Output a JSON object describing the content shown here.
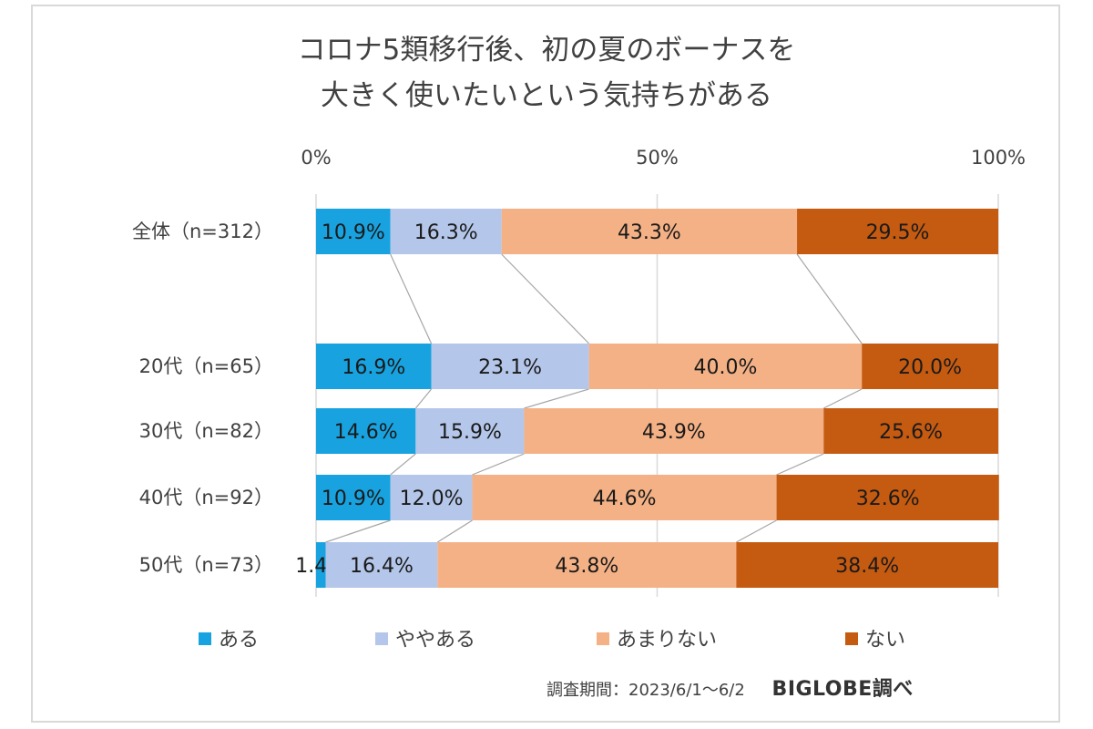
{
  "chart_data": {
    "type": "bar",
    "stacked": true,
    "orientation": "horizontal",
    "title_lines": [
      "コロナ5類移行後、初の夏のボーナスを",
      "大きく使いたいという気持ちがある"
    ],
    "x_ticks": [
      "0%",
      "50%",
      "100%"
    ],
    "xlim": [
      0,
      100
    ],
    "categories": [
      "全体（n=312）",
      "20代（n=65）",
      "30代（n=82）",
      "40代（n=92）",
      "50代（n=73）"
    ],
    "series": [
      {
        "name": "ある",
        "color": "#18a3e0",
        "values": [
          10.9,
          16.9,
          14.6,
          10.9,
          1.4
        ],
        "labels": [
          "10.9%",
          "16.9%",
          "14.6%",
          "10.9%",
          "1.4%"
        ]
      },
      {
        "name": "ややある",
        "color": "#b4c6e9",
        "values": [
          16.3,
          23.1,
          15.9,
          12.0,
          16.4
        ],
        "labels": [
          "16.3%",
          "23.1%",
          "15.9%",
          "12.0%",
          "16.4%"
        ]
      },
      {
        "name": "あまりない",
        "color": "#f4b185",
        "values": [
          43.3,
          40.0,
          43.9,
          44.6,
          43.8
        ],
        "labels": [
          "43.3%",
          "40.0%",
          "43.9%",
          "44.6%",
          "43.8%"
        ]
      },
      {
        "name": "ない",
        "color": "#c55a11",
        "values": [
          29.5,
          20.0,
          25.6,
          32.6,
          38.4
        ],
        "labels": [
          "29.5%",
          "20.0%",
          "25.6%",
          "32.6%",
          "38.4%"
        ]
      }
    ],
    "series_lines": true,
    "grid": true,
    "legend": "bottom"
  },
  "footer": {
    "survey_period": "調査期間：2023/6/1～6/2",
    "brand": "BIGLOBE調べ"
  }
}
